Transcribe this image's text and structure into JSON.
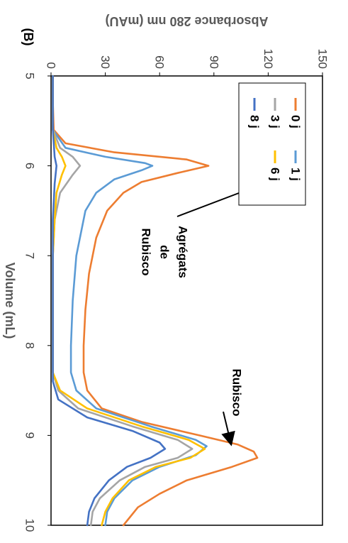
{
  "chart_data": {
    "type": "line",
    "panel_label": "(B)",
    "title": "",
    "xlabel": "Volume (mL)",
    "ylabel": "Absorbance 280 nm (mAU)",
    "xlim": [
      5,
      10
    ],
    "ylim": [
      0,
      150
    ],
    "x_ticks": [
      5,
      6,
      7,
      8,
      9,
      10
    ],
    "y_ticks": [
      0,
      30,
      60,
      90,
      120,
      150
    ],
    "grid": false,
    "legend_position": "top-right",
    "annotations": [
      {
        "lines": [
          "Agrégats",
          "de",
          "Rubisco"
        ],
        "points_to": {
          "x": 6.25,
          "y": 60
        }
      },
      {
        "lines": [
          "Rubisco"
        ],
        "points_to": {
          "x": 9.05,
          "y": 90
        }
      }
    ],
    "series": [
      {
        "name": "0 j",
        "color": "#ED7D31",
        "points": [
          [
            5,
            1
          ],
          [
            5.3,
            1
          ],
          [
            5.6,
            1.5
          ],
          [
            5.75,
            8
          ],
          [
            5.85,
            35
          ],
          [
            5.93,
            75
          ],
          [
            6.0,
            87
          ],
          [
            6.08,
            70
          ],
          [
            6.18,
            50
          ],
          [
            6.3,
            40
          ],
          [
            6.5,
            31
          ],
          [
            6.8,
            25
          ],
          [
            7.2,
            21
          ],
          [
            7.6,
            19
          ],
          [
            8.0,
            18
          ],
          [
            8.3,
            18
          ],
          [
            8.5,
            20
          ],
          [
            8.7,
            28
          ],
          [
            8.85,
            50
          ],
          [
            9.0,
            82
          ],
          [
            9.1,
            103
          ],
          [
            9.18,
            112
          ],
          [
            9.25,
            114
          ],
          [
            9.35,
            100
          ],
          [
            9.5,
            75
          ],
          [
            9.65,
            60
          ],
          [
            9.8,
            48
          ],
          [
            10,
            40
          ]
        ]
      },
      {
        "name": "1 j",
        "color": "#5B9BD5",
        "points": [
          [
            5,
            1
          ],
          [
            5.6,
            1
          ],
          [
            5.8,
            8
          ],
          [
            5.9,
            30
          ],
          [
            5.97,
            52
          ],
          [
            6.0,
            56
          ],
          [
            6.05,
            50
          ],
          [
            6.15,
            35
          ],
          [
            6.3,
            25
          ],
          [
            6.5,
            19
          ],
          [
            7.0,
            14
          ],
          [
            7.5,
            12
          ],
          [
            8.0,
            11
          ],
          [
            8.3,
            11
          ],
          [
            8.5,
            14
          ],
          [
            8.7,
            25
          ],
          [
            8.9,
            55
          ],
          [
            9.05,
            80
          ],
          [
            9.12,
            86
          ],
          [
            9.22,
            80
          ],
          [
            9.35,
            60
          ],
          [
            9.5,
            45
          ],
          [
            9.7,
            35
          ],
          [
            9.85,
            31
          ],
          [
            10,
            30
          ]
        ]
      },
      {
        "name": "3 j",
        "color": "#A5A5A5",
        "points": [
          [
            5,
            1
          ],
          [
            5.6,
            1
          ],
          [
            5.8,
            5
          ],
          [
            5.9,
            12
          ],
          [
            6.0,
            16
          ],
          [
            6.1,
            12
          ],
          [
            6.3,
            5
          ],
          [
            6.6,
            2
          ],
          [
            7.0,
            1
          ],
          [
            8.0,
            1
          ],
          [
            8.3,
            1
          ],
          [
            8.5,
            4
          ],
          [
            8.7,
            15
          ],
          [
            8.9,
            45
          ],
          [
            9.05,
            70
          ],
          [
            9.15,
            78
          ],
          [
            9.25,
            70
          ],
          [
            9.35,
            52
          ],
          [
            9.5,
            38
          ],
          [
            9.7,
            27
          ],
          [
            9.85,
            23
          ],
          [
            10,
            22
          ]
        ]
      },
      {
        "name": "6 j",
        "color": "#FFC000",
        "points": [
          [
            5,
            1
          ],
          [
            5.6,
            1
          ],
          [
            5.8,
            3
          ],
          [
            5.9,
            6
          ],
          [
            6.0,
            8
          ],
          [
            6.1,
            6
          ],
          [
            6.3,
            3
          ],
          [
            6.6,
            2
          ],
          [
            7.0,
            1
          ],
          [
            8.0,
            1
          ],
          [
            8.3,
            1
          ],
          [
            8.5,
            5
          ],
          [
            8.7,
            20
          ],
          [
            8.9,
            50
          ],
          [
            9.05,
            76
          ],
          [
            9.15,
            85
          ],
          [
            9.25,
            77
          ],
          [
            9.35,
            58
          ],
          [
            9.5,
            43
          ],
          [
            9.7,
            34
          ],
          [
            9.85,
            30
          ],
          [
            10,
            28
          ]
        ]
      },
      {
        "name": "8 j",
        "color": "#4472C4",
        "points": [
          [
            5,
            1
          ],
          [
            5.6,
            1
          ],
          [
            5.9,
            2
          ],
          [
            6.0,
            3
          ],
          [
            6.2,
            2
          ],
          [
            6.6,
            1
          ],
          [
            7.0,
            1
          ],
          [
            8.0,
            1
          ],
          [
            8.4,
            1
          ],
          [
            8.6,
            4
          ],
          [
            8.8,
            20
          ],
          [
            8.95,
            45
          ],
          [
            9.08,
            60
          ],
          [
            9.15,
            63
          ],
          [
            9.25,
            55
          ],
          [
            9.35,
            42
          ],
          [
            9.5,
            32
          ],
          [
            9.7,
            24
          ],
          [
            9.85,
            21
          ],
          [
            10,
            20
          ]
        ]
      }
    ]
  }
}
